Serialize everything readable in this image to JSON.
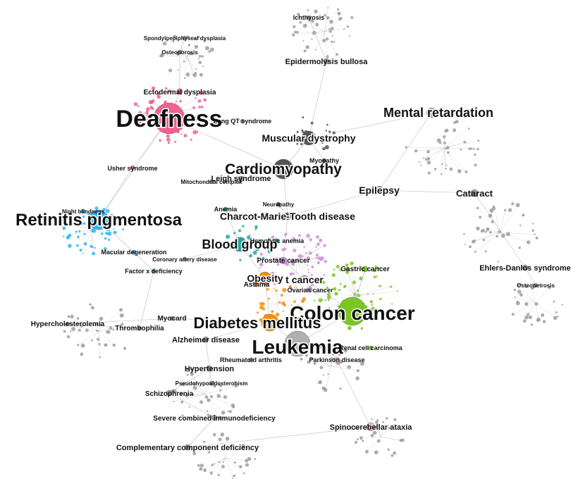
{
  "network": {
    "colors": {
      "edge": "#bdbdbd",
      "node_default": "#9e9e9e",
      "deafness": "#f06292",
      "retinitis": "#29b6f6",
      "colon": "#7cc624",
      "diabetes": "#fb8c00",
      "blood": "#26a69a",
      "cardio": "#555555",
      "prostate": "#ce93d8",
      "spino": "#e8c3c0",
      "leukemia": "#b0b0b0"
    },
    "labels": [
      {
        "id": "deafness",
        "text": "Deafness"
      },
      {
        "id": "colon-cancer",
        "text": "Colon cancer"
      },
      {
        "id": "leukemia",
        "text": "Leukemia"
      },
      {
        "id": "retinitis-pigmentosa",
        "text": "Retinitis pigmentosa"
      },
      {
        "id": "diabetes-mellitus",
        "text": "Diabetes mellitus"
      },
      {
        "id": "cardiomyopathy",
        "text": "Cardiomyopathy"
      },
      {
        "id": "mental-retardation",
        "text": "Mental retardation"
      },
      {
        "id": "blood-group",
        "text": "Blood group"
      },
      {
        "id": "muscular-dystrophy",
        "text": "Muscular dystrophy"
      },
      {
        "id": "charcot-marie-tooth",
        "text": "Charcot-Marie-Tooth disease"
      },
      {
        "id": "epilepsy",
        "text": "Epilepsy"
      },
      {
        "id": "obesity",
        "text": "Obesity"
      },
      {
        "id": "breast-cancer",
        "text": "t cancer"
      },
      {
        "id": "cataract",
        "text": "Cataract"
      },
      {
        "id": "ehlers-danlos",
        "text": "Ehlers-Danlos syndrome"
      },
      {
        "id": "epidermolysis-bullosa",
        "text": "Epidermolysis bullosa"
      },
      {
        "id": "ectodermal-dysplasia",
        "text": "Ectodermal dysplasia"
      },
      {
        "id": "usher-syndrome",
        "text": "Usher syndrome"
      },
      {
        "id": "long-qt",
        "text": "Long QT syndrome"
      },
      {
        "id": "myopathy",
        "text": "Myopathy"
      },
      {
        "id": "leigh-syndrome",
        "text": "Leigh syndrome"
      },
      {
        "id": "alzheimer",
        "text": "Alzheimer disease"
      },
      {
        "id": "hypertension",
        "text": "Hypertension"
      },
      {
        "id": "schizophrenia",
        "text": "Schizophrenia"
      },
      {
        "id": "scid",
        "text": "Severe combined immunodeficiency"
      },
      {
        "id": "complement-deficiency",
        "text": "Complementary component deficiency"
      },
      {
        "id": "spinocerebellar-ataxia",
        "text": "Spinocerebellar ataxia"
      },
      {
        "id": "parkinson",
        "text": "Parkinson disease"
      },
      {
        "id": "renal-cell-carcinoma",
        "text": "Renal cell carcinoma"
      },
      {
        "id": "rheumatoid-arthritis",
        "text": "Rheumatoid arthritis"
      },
      {
        "id": "asthma",
        "text": "Asthma"
      },
      {
        "id": "prostate-cancer",
        "text": "Prostate cancer"
      },
      {
        "id": "gastric-cancer",
        "text": "Gastric cancer"
      },
      {
        "id": "ovarian-cancer",
        "text": "Ovarian cancer"
      },
      {
        "id": "thrombophilia",
        "text": "Thrombophilia"
      },
      {
        "id": "factor-x-deficiency",
        "text": "Factor x deficiency"
      },
      {
        "id": "macular-degeneration",
        "text": "Macular degeneration"
      },
      {
        "id": "night-blindness",
        "text": "Night blindness"
      },
      {
        "id": "anemia",
        "text": "Anemia"
      },
      {
        "id": "neuropathy",
        "text": "Neuropathy"
      },
      {
        "id": "ichthyosis",
        "text": "Ichthyosis"
      },
      {
        "id": "osteopetrosis",
        "text": "Osteopetrosis"
      },
      {
        "id": "spondyloepiphyseal-dysplasia",
        "text": "Spondyloepiphyseal dysplasia"
      },
      {
        "id": "osteoporosis",
        "text": "Osteoporosis"
      },
      {
        "id": "myocardial-infarction",
        "text": "Myocard"
      },
      {
        "id": "hypercholesterolemia",
        "text": "Hypercholesterolemia"
      },
      {
        "id": "pseudohypoaldosteronism",
        "text": "Pseudohypoaldosteronism"
      },
      {
        "id": "coronary-artery-disease",
        "text": "Coronary artery disease"
      },
      {
        "id": "hemolytic-anemia",
        "text": "Hemolytic anemia"
      },
      {
        "id": "mitochondrial-complex",
        "text": "Mitochondrial complex"
      }
    ]
  }
}
